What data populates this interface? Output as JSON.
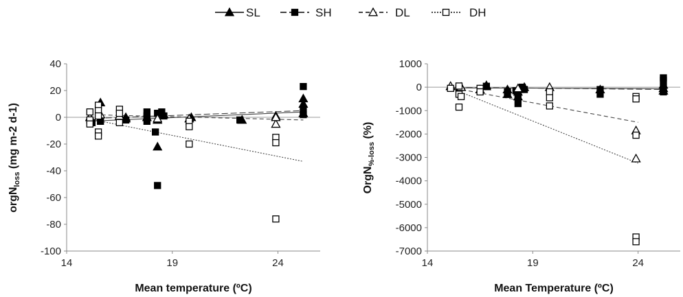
{
  "legend": [
    {
      "label": "SL",
      "marker": "triangle-filled",
      "line": "solid"
    },
    {
      "label": "SH",
      "marker": "square-filled",
      "line": "long-dash"
    },
    {
      "label": "DL",
      "marker": "triangle-open",
      "line": "dash"
    },
    {
      "label": "DH",
      "marker": "square-open",
      "line": "dot"
    }
  ],
  "chart_data": [
    {
      "type": "scatter",
      "xlabel": "Mean temperature (ºC)",
      "ylabel_main": "orgN",
      "ylabel_sub": "loss",
      "ylabel_rest": " (mg m-2 d-1)",
      "xlim": [
        14,
        26
      ],
      "ylim": [
        -100,
        40
      ],
      "xticks": [
        14,
        19,
        24
      ],
      "yticks": [
        40,
        20,
        0,
        -20,
        -40,
        -60,
        -80,
        -100
      ],
      "series": [
        {
          "name": "SL",
          "marker": "triangle-filled",
          "points": [
            [
              15.6,
              11
            ],
            [
              16.8,
              0
            ],
            [
              16.8,
              -1
            ],
            [
              17.8,
              0
            ],
            [
              18.3,
              -22
            ],
            [
              18.3,
              -2
            ],
            [
              18.6,
              2
            ],
            [
              19.9,
              0
            ],
            [
              22.3,
              -2
            ],
            [
              23.9,
              1
            ],
            [
              25.2,
              14
            ],
            [
              25.2,
              10
            ],
            [
              25.2,
              3
            ]
          ],
          "trend": [
            [
              15.0,
              -3.0
            ],
            [
              25.2,
              4.0
            ]
          ]
        },
        {
          "name": "SH",
          "marker": "square-filled",
          "points": [
            [
              15.2,
              -4
            ],
            [
              15.6,
              -3
            ],
            [
              16.8,
              -2
            ],
            [
              17.8,
              4
            ],
            [
              17.8,
              1
            ],
            [
              17.8,
              -3
            ],
            [
              18.2,
              -11
            ],
            [
              18.3,
              -51
            ],
            [
              18.3,
              3
            ],
            [
              18.5,
              4
            ],
            [
              18.6,
              1
            ],
            [
              22.2,
              -2
            ],
            [
              25.2,
              23
            ],
            [
              25.2,
              5
            ],
            [
              25.2,
              2
            ]
          ],
          "trend": [
            [
              15.0,
              -1.0
            ],
            [
              25.2,
              5.0
            ]
          ]
        },
        {
          "name": "DL",
          "marker": "triangle-open",
          "points": [
            [
              15.1,
              0
            ],
            [
              15.6,
              2
            ],
            [
              16.5,
              1
            ],
            [
              18.3,
              -1
            ],
            [
              19.8,
              -1
            ],
            [
              23.9,
              -5
            ],
            [
              23.9,
              0
            ]
          ],
          "trend": [
            [
              15.0,
              2.0
            ],
            [
              25.2,
              -2.0
            ]
          ]
        },
        {
          "name": "DH",
          "marker": "square-open",
          "points": [
            [
              15.1,
              4
            ],
            [
              15.1,
              -2
            ],
            [
              15.1,
              -5
            ],
            [
              15.5,
              9
            ],
            [
              15.5,
              5
            ],
            [
              15.5,
              1
            ],
            [
              15.5,
              -11
            ],
            [
              15.5,
              -14
            ],
            [
              16.5,
              6
            ],
            [
              16.5,
              3
            ],
            [
              16.5,
              -4
            ],
            [
              19.8,
              -3
            ],
            [
              19.8,
              -7
            ],
            [
              19.8,
              -20
            ],
            [
              23.9,
              -15
            ],
            [
              23.9,
              -19
            ],
            [
              23.9,
              -76
            ]
          ],
          "trend": [
            [
              15.0,
              -1.0
            ],
            [
              25.2,
              -33.0
            ]
          ]
        }
      ]
    },
    {
      "type": "scatter",
      "xlabel": "Mean Temperature (ºC)",
      "ylabel_main": "OrgN",
      "ylabel_sub": "%-loss",
      "ylabel_rest": " (%)",
      "xlim": [
        14,
        26
      ],
      "ylim": [
        -7000,
        1000
      ],
      "xticks": [
        14,
        19,
        24
      ],
      "yticks": [
        1000,
        0,
        -1000,
        -2000,
        -3000,
        -4000,
        -5000,
        -6000,
        -7000
      ],
      "series": [
        {
          "name": "SL",
          "marker": "triangle-filled",
          "points": [
            [
              15.1,
              30
            ],
            [
              15.6,
              10
            ],
            [
              16.8,
              80
            ],
            [
              16.8,
              30
            ],
            [
              17.8,
              -100
            ],
            [
              17.8,
              -300
            ],
            [
              18.3,
              -200
            ],
            [
              18.3,
              -400
            ],
            [
              18.6,
              0
            ],
            [
              22.2,
              -100
            ],
            [
              25.2,
              100
            ],
            [
              25.2,
              -50
            ],
            [
              25.2,
              -150
            ]
          ],
          "trend": [
            [
              15.0,
              -30.0
            ],
            [
              25.2,
              -60.0
            ]
          ]
        },
        {
          "name": "SH",
          "marker": "square-filled",
          "points": [
            [
              15.5,
              -50
            ],
            [
              16.8,
              40
            ],
            [
              17.8,
              -200
            ],
            [
              18.2,
              -150
            ],
            [
              18.3,
              -400
            ],
            [
              18.3,
              -700
            ],
            [
              18.5,
              0
            ],
            [
              18.6,
              -100
            ],
            [
              22.2,
              -100
            ],
            [
              22.2,
              -300
            ],
            [
              25.2,
              400
            ],
            [
              25.2,
              300
            ],
            [
              25.2,
              0
            ],
            [
              25.2,
              -200
            ]
          ],
          "trend": [
            [
              15.0,
              0.0
            ],
            [
              25.2,
              -100.0
            ]
          ]
        },
        {
          "name": "DL",
          "marker": "triangle-open",
          "points": [
            [
              15.1,
              50
            ],
            [
              15.6,
              0
            ],
            [
              16.5,
              -100
            ],
            [
              18.3,
              -50
            ],
            [
              19.8,
              0
            ],
            [
              23.9,
              -1850
            ],
            [
              23.9,
              -3050
            ]
          ],
          "trend": [
            [
              15.0,
              0.0
            ],
            [
              24.0,
              -1500.0
            ]
          ]
        },
        {
          "name": "DH",
          "marker": "square-open",
          "points": [
            [
              15.1,
              -50
            ],
            [
              15.5,
              50
            ],
            [
              15.5,
              -300
            ],
            [
              15.5,
              -850
            ],
            [
              15.6,
              -400
            ],
            [
              16.5,
              -50
            ],
            [
              16.5,
              -200
            ],
            [
              19.8,
              -200
            ],
            [
              19.8,
              -450
            ],
            [
              19.8,
              -800
            ],
            [
              23.9,
              -400
            ],
            [
              23.9,
              -500
            ],
            [
              23.9,
              -2050
            ],
            [
              23.9,
              -6400
            ],
            [
              23.9,
              -6600
            ]
          ],
          "trend": [
            [
              15.0,
              0.0
            ],
            [
              24.0,
              -3250.0
            ]
          ]
        }
      ]
    }
  ]
}
